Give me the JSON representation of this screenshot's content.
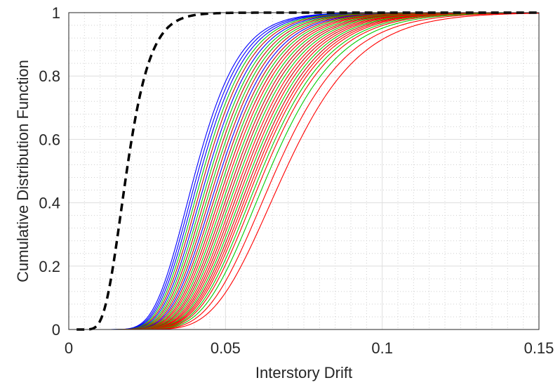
{
  "chart_data": {
    "type": "line",
    "title": "",
    "xlabel": "Interstory Drift",
    "ylabel": "Cumulative Distribution Function",
    "xlim": [
      0,
      0.15
    ],
    "ylim": [
      0,
      1
    ],
    "xticks": [
      0,
      0.05,
      0.1,
      0.15
    ],
    "xtick_labels": [
      "0",
      "0.05",
      "0.1",
      "0.15"
    ],
    "yticks": [
      0,
      0.2,
      0.4,
      0.6,
      0.8,
      1
    ],
    "ytick_labels": [
      "0",
      "0.2",
      "0.4",
      "0.6",
      "0.8",
      "1"
    ],
    "grid": "major solid, minor dotted",
    "legend": "none",
    "colors": {
      "curve_palette": [
        "#0000ff",
        "#00cc00",
        "#cc0000",
        "#ff0000"
      ],
      "reference_line": "#000000"
    },
    "reference_series": {
      "distribution": "lognormal",
      "median": 0.0185,
      "dispersion": 0.32,
      "style": "dashed",
      "color": "#000000"
    },
    "curve_family": {
      "distribution": "lognormal",
      "dispersion": 0.27,
      "medians": [
        0.0405,
        0.0413,
        0.0421,
        0.0429,
        0.0437,
        0.0445,
        0.0453,
        0.0461,
        0.0469,
        0.0477,
        0.0485,
        0.0493,
        0.0501,
        0.0509,
        0.0517,
        0.0525,
        0.0533,
        0.0541,
        0.0549,
        0.0557,
        0.0565,
        0.0573,
        0.0581,
        0.0589,
        0.0597,
        0.0605,
        0.0615,
        0.0625,
        0.064,
        0.066,
        0.069
      ],
      "colors": [
        "#0000ff",
        "#0000ff",
        "#0000ff",
        "#00cc00",
        "#cc0000",
        "#0000ff",
        "#00cc00",
        "#cc0000",
        "#00cc00",
        "#cc0000",
        "#0000ff",
        "#cc0000",
        "#00cc00",
        "#cc0000",
        "#ff0000",
        "#00cc00",
        "#cc0000",
        "#cc0000",
        "#00cc00",
        "#ff0000",
        "#cc0000",
        "#ff0000",
        "#00cc00",
        "#cc0000",
        "#ff0000",
        "#ff0000",
        "#00cc00",
        "#ff0000",
        "#00cc00",
        "#ff0000",
        "#ff0000"
      ]
    }
  }
}
